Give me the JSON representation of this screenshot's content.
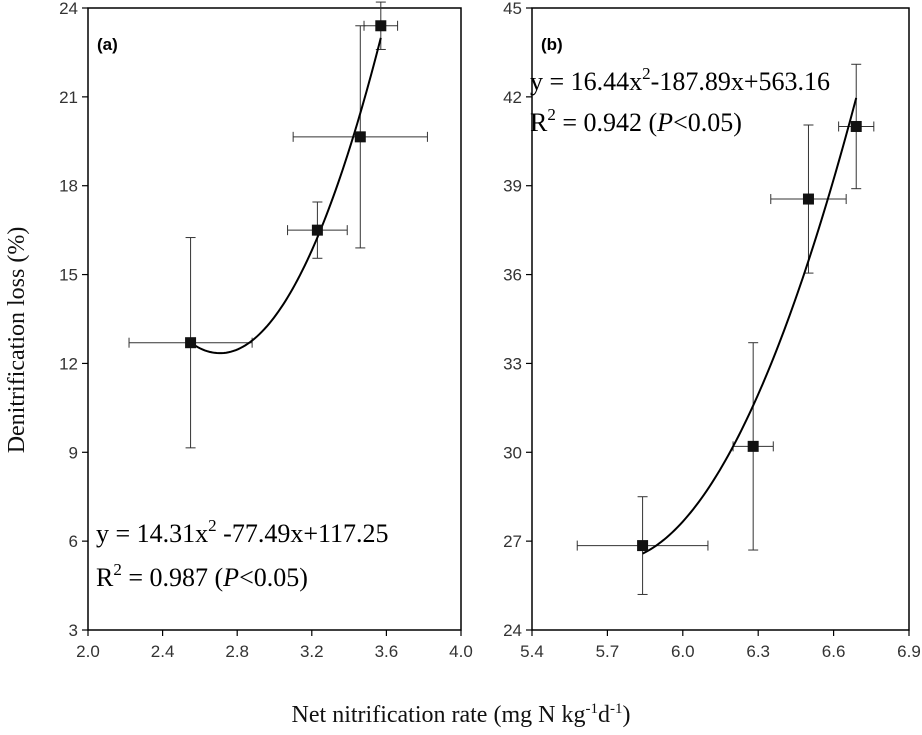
{
  "figure": {
    "shared_ylabel": "Denitrification loss (%)",
    "shared_xlabel_base": "Net nitrification rate (mg N kg",
    "shared_xlabel_sup1": "-1",
    "shared_xlabel_mid": "d",
    "shared_xlabel_sup2": "-1",
    "shared_xlabel_end": ")"
  },
  "chart_data": [
    {
      "type": "scatter",
      "panel": "(a)",
      "xlabel": "Net nitrification rate (mg N kg-1 d-1)",
      "ylabel": "Denitrification loss (%)",
      "xlim": [
        2.0,
        4.0
      ],
      "ylim": [
        3,
        24
      ],
      "xticks": [
        "2.0",
        "2.4",
        "2.8",
        "3.2",
        "3.6",
        "4.0"
      ],
      "xtick_values": [
        2.0,
        2.4,
        2.8,
        3.2,
        3.6,
        4.0
      ],
      "yticks": [
        "3",
        "6",
        "9",
        "12",
        "15",
        "18",
        "21",
        "24"
      ],
      "ytick_values": [
        3,
        6,
        9,
        12,
        15,
        18,
        21,
        24
      ],
      "points": [
        {
          "x": 2.55,
          "y": 12.7,
          "xerr": 0.33,
          "yerr_low": 3.55,
          "yerr_high": 3.55
        },
        {
          "x": 3.23,
          "y": 16.5,
          "xerr": 0.16,
          "yerr_low": 0.95,
          "yerr_high": 0.95
        },
        {
          "x": 3.46,
          "y": 19.65,
          "xerr": 0.36,
          "yerr_low": 3.75,
          "yerr_high": 3.75
        },
        {
          "x": 3.57,
          "y": 23.4,
          "xerr": 0.09,
          "yerr_low": 0.8,
          "yerr_high": 0.8
        }
      ],
      "fit": {
        "a": 14.31,
        "b": -77.49,
        "c": 117.25,
        "x_from": 2.55,
        "x_to": 3.57
      },
      "equation": {
        "y_eq": "y = 14.31x",
        "sup": "2",
        "rest": " -77.49x+117.25",
        "r_prefix": "R",
        "r_sup": "2",
        "r_mid": " = 0.987 (",
        "p": "P",
        "r_end": "<0.05)"
      }
    },
    {
      "type": "scatter",
      "panel": "(b)",
      "xlabel": "Net nitrification rate (mg N kg-1 d-1)",
      "ylabel": "Denitrification loss (%)",
      "xlim": [
        5.4,
        6.9
      ],
      "ylim": [
        24,
        45
      ],
      "xticks": [
        "5.4",
        "5.7",
        "6.0",
        "6.3",
        "6.6",
        "6.9"
      ],
      "xtick_values": [
        5.4,
        5.7,
        6.0,
        6.3,
        6.6,
        6.9
      ],
      "yticks": [
        "24",
        "27",
        "30",
        "33",
        "36",
        "39",
        "42",
        "45"
      ],
      "ytick_values": [
        24,
        27,
        30,
        33,
        36,
        39,
        42,
        45
      ],
      "points": [
        {
          "x": 5.84,
          "y": 26.85,
          "xerr": 0.26,
          "yerr_low": 1.65,
          "yerr_high": 1.65
        },
        {
          "x": 6.28,
          "y": 30.2,
          "xerr": 0.08,
          "yerr_low": 3.5,
          "yerr_high": 3.5
        },
        {
          "x": 6.5,
          "y": 38.55,
          "xerr": 0.15,
          "yerr_low": 2.5,
          "yerr_high": 2.5
        },
        {
          "x": 6.69,
          "y": 41.0,
          "xerr": 0.07,
          "yerr_low": 2.1,
          "yerr_high": 2.1
        }
      ],
      "fit": {
        "a": 16.44,
        "b": -187.89,
        "c": 563.16,
        "x_from": 5.84,
        "x_to": 6.69
      },
      "equation": {
        "y_eq": "y = 16.44x",
        "sup": "2",
        "rest": "-187.89x+563.16",
        "r_prefix": "R",
        "r_sup": "2",
        "r_mid": " = 0.942 (",
        "p": "P",
        "r_end": "<0.05)"
      }
    }
  ]
}
